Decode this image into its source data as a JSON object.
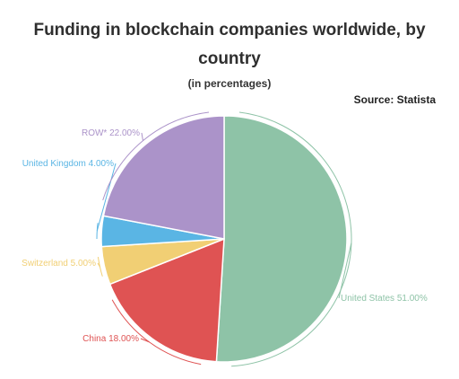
{
  "title": "Funding in blockchain companies worldwide, by country",
  "subtitle": "(in percentages)",
  "source": "Source: Statista",
  "chart_data": {
    "type": "pie",
    "slices": [
      {
        "label": "United States",
        "value": 51.0,
        "text": "United States 51.00%",
        "color": "#8ec3a7"
      },
      {
        "label": "China",
        "value": 18.0,
        "text": "China 18.00%",
        "color": "#df5353"
      },
      {
        "label": "Switzerland",
        "value": 5.0,
        "text": "Switzerland 5.00%",
        "color": "#f1cf74"
      },
      {
        "label": "United Kingdom",
        "value": 4.0,
        "text": "United Kingdom 4.00%",
        "color": "#5ab5e4"
      },
      {
        "label": "ROW*",
        "value": 22.0,
        "text": "ROW* 22.00%",
        "color": "#ab93c9"
      }
    ],
    "start": "12 o'clock",
    "direction": "clockwise"
  }
}
